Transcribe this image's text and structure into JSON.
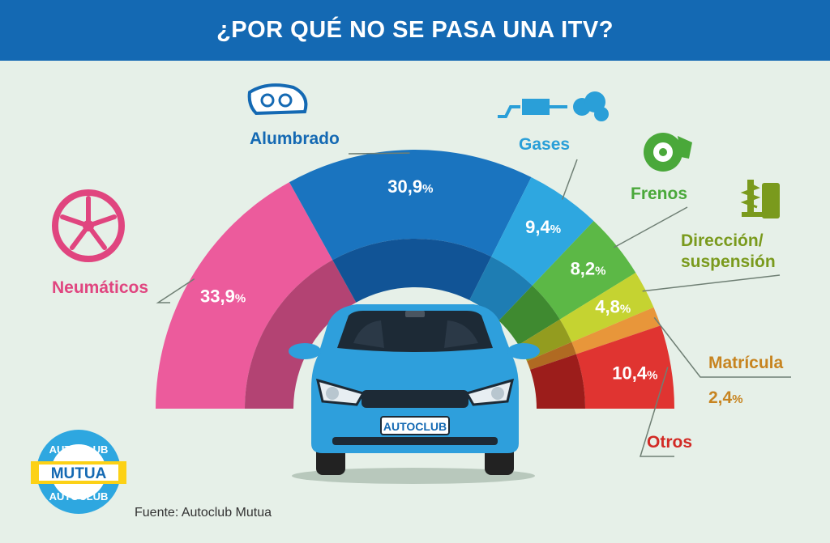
{
  "header": {
    "title": "¿POR QUÉ NO SE PASA UNA ITV?"
  },
  "chart_data": {
    "type": "pie",
    "variant": "semicircle",
    "title": "¿POR QUÉ NO SE PASA UNA ITV?",
    "unit": "%",
    "categories": [
      "Neumáticos",
      "Alumbrado",
      "Gases",
      "Frenos",
      "Dirección/\nsuspensión",
      "Matrícula",
      "Otros"
    ],
    "values": [
      33.9,
      30.9,
      9.4,
      8.2,
      4.8,
      2.4,
      10.4
    ],
    "value_labels": [
      "33,9",
      "30,9",
      "9,4",
      "8,2",
      "4,8",
      "2,4",
      "10,4"
    ],
    "label_lines": [
      [
        "Neumáticos"
      ],
      [
        "Alumbrado"
      ],
      [
        "Gases"
      ],
      [
        "Frenos"
      ],
      [
        "Dirección/",
        "suspensión"
      ],
      [
        "Matrícula"
      ],
      [
        "Otros"
      ]
    ],
    "colors": [
      "#ec5b9c",
      "#1a74bf",
      "#2ea7e0",
      "#5cb846",
      "#c5d331",
      "#e8963a",
      "#e03431"
    ],
    "dark_colors": [
      "#b34373",
      "#115496",
      "#1e7db3",
      "#3f8a30",
      "#939c1f",
      "#b06a22",
      "#9c1d1b"
    ],
    "label_colors": [
      "#e0457f",
      "#1469b3",
      "#2a9fd8",
      "#4aa83a",
      "#7a9a1d",
      "#c78420",
      "#d22a25"
    ],
    "legend": "none"
  },
  "car": {
    "plate_text": "AUTOCLUB"
  },
  "logo": {
    "top_text": "AUTOCLUB",
    "middle_text": "MUTUA",
    "bottom_text": "AUTOCLUB"
  },
  "source": "Fuente: Autoclub Mutua"
}
